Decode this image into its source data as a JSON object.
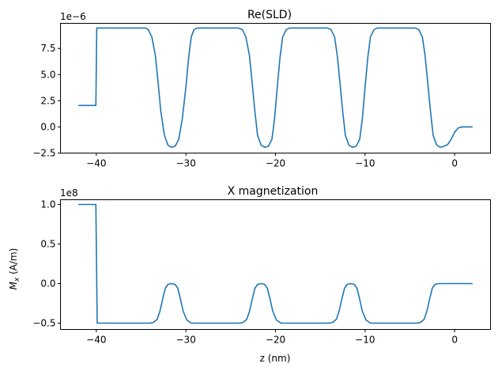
{
  "chart_data": [
    {
      "type": "line",
      "title": "Re(SLD)",
      "xlabel": "",
      "ylabel": "",
      "offset_text": "1e−6",
      "xlim": [
        -44,
        4
      ],
      "ylim": [
        -2.5,
        9.9
      ],
      "xticks": [
        -40,
        -30,
        -20,
        -10,
        0
      ],
      "xtick_labels": [
        "−40",
        "−30",
        "−20",
        "−10",
        "0"
      ],
      "yticks": [
        -2.5,
        0.0,
        2.5,
        5.0,
        7.5
      ],
      "ytick_labels": [
        "−2.5",
        "0.0",
        "2.5",
        "5.0",
        "7.5"
      ],
      "grid": false,
      "color": "#1f77b4",
      "series": [
        {
          "x": [
            -42,
            -40.05,
            -39.95,
            -34.5,
            -34.2,
            -33.8,
            -33.4,
            -33.1,
            -32.8,
            -32.4,
            -32.0,
            -31.6,
            -31.2,
            -30.8,
            -30.4,
            -30.0,
            -29.7,
            -29.4,
            -29.1,
            -28.7,
            -28.3,
            -27.8,
            -24.2,
            -23.7,
            -23.3,
            -22.9,
            -22.6,
            -22.3,
            -22.0,
            -21.6,
            -21.2,
            -20.8,
            -20.4,
            -20.1,
            -19.8,
            -19.5,
            -19.2,
            -18.8,
            -18.4,
            -18.0,
            -14.2,
            -13.8,
            -13.4,
            -13.1,
            -12.8,
            -12.5,
            -12.2,
            -11.8,
            -11.4,
            -11.0,
            -10.6,
            -10.3,
            -10.0,
            -9.7,
            -9.4,
            -9.0,
            -8.6,
            -8.2,
            -4.4,
            -4.0,
            -3.6,
            -3.3,
            -3.0,
            -2.7,
            -2.4,
            -2.0,
            -1.6,
            -1.2,
            -0.8,
            -0.4,
            0.0,
            0.4,
            0.8,
            1.2,
            1.6,
            2.0
          ],
          "y": [
            2.05,
            2.05,
            9.45,
            9.45,
            9.3,
            8.6,
            6.8,
            4.2,
            1.5,
            -0.8,
            -1.75,
            -1.95,
            -1.85,
            -1.2,
            0.8,
            3.8,
            6.6,
            8.6,
            9.3,
            9.45,
            9.45,
            9.45,
            9.45,
            9.3,
            8.6,
            6.8,
            4.2,
            1.5,
            -0.8,
            -1.75,
            -1.95,
            -1.85,
            -1.2,
            0.8,
            3.8,
            6.6,
            8.6,
            9.3,
            9.45,
            9.45,
            9.45,
            9.3,
            8.6,
            6.8,
            4.2,
            1.5,
            -0.8,
            -1.75,
            -1.95,
            -1.85,
            -1.2,
            0.8,
            3.8,
            6.6,
            8.6,
            9.3,
            9.45,
            9.45,
            9.45,
            9.3,
            8.6,
            6.8,
            4.2,
            1.5,
            -0.8,
            -1.75,
            -1.95,
            -1.85,
            -1.7,
            -1.2,
            -0.5,
            -0.1,
            0.0,
            0.0,
            0.0,
            0.0
          ]
        }
      ]
    },
    {
      "type": "line",
      "title": "X magnetization",
      "xlabel": "z (nm)",
      "ylabel": "M_x (A/m)",
      "ylabel_main": "M",
      "ylabel_sub": "x",
      "ylabel_rest": " (A/m)",
      "offset_text": "1e8",
      "xlim": [
        -44,
        4
      ],
      "ylim": [
        -0.58,
        1.06
      ],
      "xticks": [
        -40,
        -30,
        -20,
        -10,
        0
      ],
      "xtick_labels": [
        "−40",
        "−30",
        "−20",
        "−10",
        "0"
      ],
      "yticks": [
        -0.5,
        0.0,
        0.5,
        1.0
      ],
      "ytick_labels": [
        "−0.5",
        "0.0",
        "0.5",
        "1.0"
      ],
      "grid": false,
      "color": "#1f77b4",
      "series": [
        {
          "x": [
            -42,
            -40.05,
            -39.9,
            -34.0,
            -33.6,
            -33.2,
            -32.9,
            -32.6,
            -32.3,
            -32.0,
            -31.6,
            -31.2,
            -30.9,
            -30.6,
            -30.3,
            -29.9,
            -29.4,
            -24.0,
            -23.6,
            -23.2,
            -22.9,
            -22.6,
            -22.3,
            -22.0,
            -21.6,
            -21.2,
            -20.9,
            -20.6,
            -20.3,
            -19.9,
            -19.4,
            -14.0,
            -13.6,
            -13.2,
            -12.9,
            -12.6,
            -12.3,
            -12.0,
            -11.6,
            -11.2,
            -10.9,
            -10.6,
            -10.3,
            -9.9,
            -9.4,
            -4.2,
            -3.8,
            -3.4,
            -3.1,
            -2.8,
            -2.5,
            -2.2,
            -1.8,
            -1.2,
            0.0,
            2.0
          ],
          "y": [
            1.0,
            1.0,
            -0.5,
            -0.5,
            -0.49,
            -0.45,
            -0.35,
            -0.2,
            -0.06,
            -0.01,
            0.0,
            -0.01,
            -0.06,
            -0.2,
            -0.35,
            -0.46,
            -0.5,
            -0.5,
            -0.49,
            -0.45,
            -0.35,
            -0.2,
            -0.06,
            -0.01,
            0.0,
            -0.01,
            -0.06,
            -0.2,
            -0.35,
            -0.46,
            -0.5,
            -0.5,
            -0.49,
            -0.45,
            -0.35,
            -0.2,
            -0.06,
            -0.01,
            0.0,
            -0.01,
            -0.06,
            -0.2,
            -0.35,
            -0.46,
            -0.5,
            -0.5,
            -0.49,
            -0.45,
            -0.35,
            -0.2,
            -0.06,
            -0.01,
            0.0,
            0.0,
            0.0,
            0.0
          ]
        }
      ]
    }
  ]
}
